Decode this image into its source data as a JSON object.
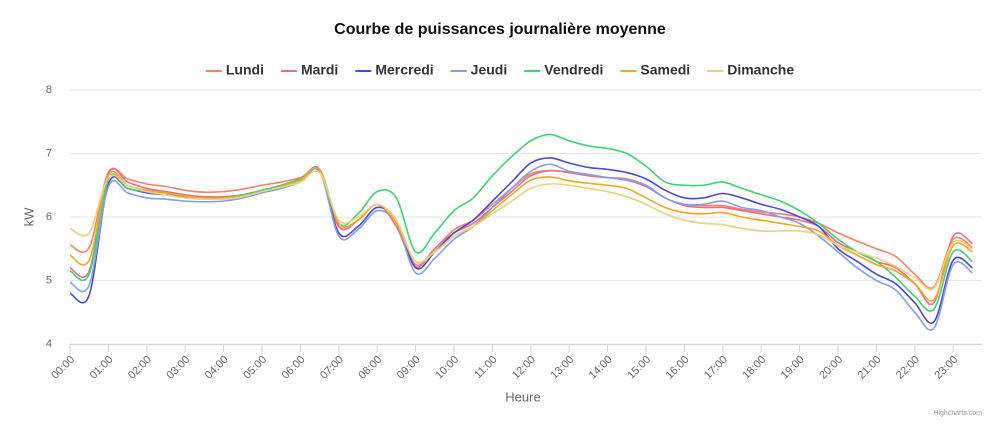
{
  "chart_data": {
    "type": "line",
    "title": "Courbe de puissances journalière moyenne",
    "x_label": "Heure",
    "y_label": "kW",
    "credits": "Highcharts.com",
    "x": [
      0,
      0.5,
      1,
      1.5,
      2,
      2.5,
      3,
      3.5,
      4,
      4.5,
      5,
      5.5,
      6,
      6.5,
      7,
      7.5,
      8,
      8.5,
      9,
      9.5,
      10,
      10.5,
      11,
      11.5,
      12,
      12.5,
      13,
      13.5,
      14,
      14.5,
      15,
      15.5,
      16,
      16.5,
      17,
      17.5,
      18,
      18.5,
      19,
      19.5,
      20,
      20.5,
      21,
      21.5,
      22,
      22.5,
      23,
      23.5
    ],
    "xlim": [
      0,
      23.75
    ],
    "xticks": [
      {
        "value": 0,
        "label": "00:00"
      },
      {
        "value": 1,
        "label": "01:00"
      },
      {
        "value": 2,
        "label": "02:00"
      },
      {
        "value": 3,
        "label": "03:00"
      },
      {
        "value": 4,
        "label": "04:00"
      },
      {
        "value": 5,
        "label": "05:00"
      },
      {
        "value": 6,
        "label": "06:00"
      },
      {
        "value": 7,
        "label": "07:00"
      },
      {
        "value": 8,
        "label": "08:00"
      },
      {
        "value": 9,
        "label": "09:00"
      },
      {
        "value": 10,
        "label": "10:00"
      },
      {
        "value": 11,
        "label": "11:00"
      },
      {
        "value": 12,
        "label": "12:00"
      },
      {
        "value": 13,
        "label": "13:00"
      },
      {
        "value": 14,
        "label": "14:00"
      },
      {
        "value": 15,
        "label": "15:00"
      },
      {
        "value": 16,
        "label": "16:00"
      },
      {
        "value": 17,
        "label": "17:00"
      },
      {
        "value": 18,
        "label": "18:00"
      },
      {
        "value": 19,
        "label": "19:00"
      },
      {
        "value": 20,
        "label": "20:00"
      },
      {
        "value": 21,
        "label": "21:00"
      },
      {
        "value": 22,
        "label": "22:00"
      },
      {
        "value": 23,
        "label": "23:00"
      }
    ],
    "ylim": [
      4,
      8
    ],
    "yticks": [
      4,
      5,
      6,
      7,
      8
    ],
    "grid": true,
    "series": [
      {
        "name": "Lundi",
        "color": "#f7826b",
        "values": [
          5.56,
          5.52,
          6.7,
          6.6,
          6.52,
          6.48,
          6.42,
          6.39,
          6.4,
          6.44,
          6.5,
          6.55,
          6.62,
          6.72,
          5.85,
          5.95,
          6.2,
          5.9,
          5.25,
          5.5,
          5.8,
          5.95,
          6.2,
          6.45,
          6.68,
          6.73,
          6.7,
          6.65,
          6.62,
          6.6,
          6.5,
          6.3,
          6.2,
          6.18,
          6.18,
          6.12,
          6.08,
          6.05,
          6.0,
          5.9,
          5.75,
          5.62,
          5.5,
          5.38,
          5.1,
          4.9,
          5.65,
          5.52
        ]
      },
      {
        "name": "Mardi",
        "color": "#f06b85",
        "values": [
          5.2,
          5.15,
          6.68,
          6.55,
          6.45,
          6.4,
          6.35,
          6.32,
          6.32,
          6.35,
          6.42,
          6.5,
          6.6,
          6.75,
          5.85,
          5.95,
          6.2,
          5.85,
          5.22,
          5.5,
          5.75,
          5.9,
          6.15,
          6.4,
          6.65,
          6.73,
          6.7,
          6.65,
          6.62,
          6.58,
          6.48,
          6.3,
          6.18,
          6.15,
          6.15,
          6.1,
          6.05,
          6.0,
          5.95,
          5.85,
          5.6,
          5.45,
          5.3,
          5.2,
          4.95,
          4.65,
          5.7,
          5.58
        ]
      },
      {
        "name": "Mercredi",
        "color": "#4a4ad6",
        "values": [
          4.8,
          4.77,
          6.52,
          6.45,
          6.38,
          6.35,
          6.32,
          6.3,
          6.3,
          6.33,
          6.4,
          6.48,
          6.58,
          6.75,
          5.75,
          5.85,
          6.15,
          5.95,
          5.2,
          5.45,
          5.75,
          5.95,
          6.25,
          6.55,
          6.85,
          6.93,
          6.85,
          6.78,
          6.75,
          6.7,
          6.6,
          6.42,
          6.3,
          6.3,
          6.37,
          6.3,
          6.2,
          6.12,
          6.0,
          5.85,
          5.5,
          5.3,
          5.1,
          4.95,
          4.65,
          4.35,
          5.32,
          5.2
        ]
      },
      {
        "name": "Jeudi",
        "color": "#7fa0f0",
        "values": [
          4.97,
          4.93,
          6.48,
          6.38,
          6.3,
          6.28,
          6.25,
          6.24,
          6.25,
          6.3,
          6.38,
          6.45,
          6.55,
          6.72,
          5.7,
          5.8,
          6.1,
          5.9,
          5.12,
          5.35,
          5.65,
          5.85,
          6.15,
          6.45,
          6.72,
          6.83,
          6.72,
          6.67,
          6.62,
          6.58,
          6.5,
          6.3,
          6.2,
          6.2,
          6.25,
          6.15,
          6.1,
          6.0,
          5.9,
          5.7,
          5.45,
          5.2,
          5.0,
          4.85,
          4.5,
          4.25,
          5.25,
          5.12
        ]
      },
      {
        "name": "Vendredi",
        "color": "#3dd46e",
        "values": [
          5.15,
          5.1,
          6.6,
          6.45,
          6.4,
          6.38,
          6.33,
          6.3,
          6.3,
          6.35,
          6.42,
          6.5,
          6.6,
          6.75,
          5.9,
          6.05,
          6.4,
          6.3,
          5.45,
          5.75,
          6.1,
          6.3,
          6.65,
          6.95,
          7.2,
          7.3,
          7.2,
          7.12,
          7.08,
          7.0,
          6.8,
          6.55,
          6.5,
          6.5,
          6.55,
          6.45,
          6.35,
          6.25,
          6.1,
          5.9,
          5.65,
          5.45,
          5.3,
          5.05,
          4.75,
          4.55,
          5.45,
          5.3
        ]
      },
      {
        "name": "Samedi",
        "color": "#f5a623",
        "values": [
          5.4,
          5.32,
          6.65,
          6.5,
          6.42,
          6.38,
          6.33,
          6.3,
          6.3,
          6.33,
          6.4,
          6.48,
          6.58,
          6.75,
          5.9,
          5.95,
          6.2,
          5.9,
          5.3,
          5.45,
          5.7,
          5.85,
          6.1,
          6.35,
          6.58,
          6.63,
          6.57,
          6.53,
          6.5,
          6.45,
          6.3,
          6.15,
          6.07,
          6.05,
          6.07,
          6.0,
          5.95,
          5.9,
          5.85,
          5.78,
          5.55,
          5.4,
          5.25,
          5.15,
          4.95,
          4.7,
          5.55,
          5.45
        ]
      },
      {
        "name": "Dimanche",
        "color": "#ecd07a",
        "values": [
          5.82,
          5.75,
          6.62,
          6.5,
          6.4,
          6.35,
          6.3,
          6.28,
          6.28,
          6.32,
          6.4,
          6.47,
          6.55,
          6.7,
          5.95,
          6.0,
          6.2,
          5.95,
          5.3,
          5.45,
          5.7,
          5.85,
          6.05,
          6.25,
          6.45,
          6.52,
          6.5,
          6.45,
          6.4,
          6.32,
          6.2,
          6.05,
          5.95,
          5.9,
          5.88,
          5.82,
          5.78,
          5.78,
          5.78,
          5.72,
          5.55,
          5.45,
          5.35,
          5.22,
          5.05,
          4.88,
          5.6,
          5.5
        ]
      }
    ]
  }
}
